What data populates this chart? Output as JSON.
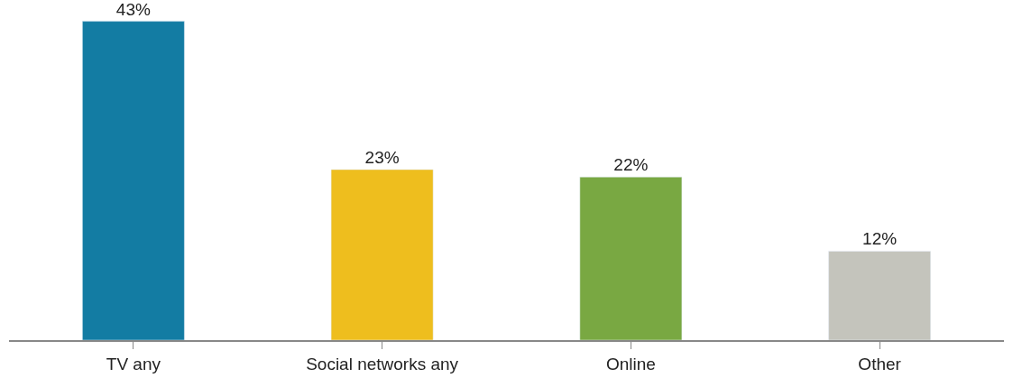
{
  "chart_data": {
    "type": "bar",
    "categories": [
      "TV any",
      "Social networks any",
      "Online",
      "Other"
    ],
    "values": [
      43,
      23,
      22,
      12
    ],
    "colors": [
      "#137ca3",
      "#eebe1e",
      "#79a842",
      "#c4c4bc"
    ],
    "value_labels": [
      "43%",
      "23%",
      "22%",
      "12%"
    ],
    "tick_labels": "x"
  }
}
